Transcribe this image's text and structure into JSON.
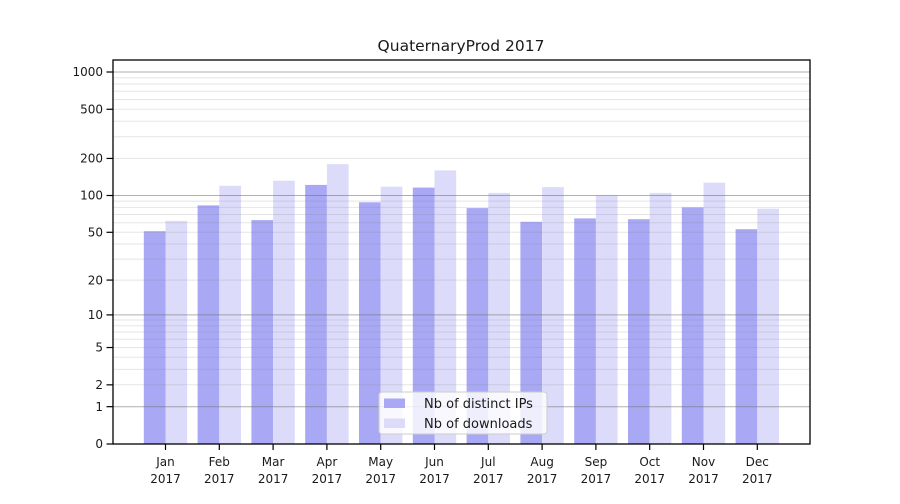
{
  "chart_data": {
    "type": "bar",
    "title": "QuaternaryProd 2017",
    "categories": [
      "Jan 2017",
      "Feb 2017",
      "Mar 2017",
      "Apr 2017",
      "May 2017",
      "Jun 2017",
      "Jul 2017",
      "Aug 2017",
      "Sep 2017",
      "Oct 2017",
      "Nov 2017",
      "Dec 2017"
    ],
    "series": [
      {
        "name": "Nb of distinct IPs",
        "color": "#a8a8f4",
        "values": [
          51,
          83,
          63,
          122,
          88,
          116,
          79,
          61,
          65,
          64,
          80,
          53
        ]
      },
      {
        "name": "Nb of downloads",
        "color": "#dcdcfa",
        "values": [
          62,
          120,
          132,
          180,
          118,
          160,
          105,
          117,
          100,
          105,
          127,
          78
        ]
      }
    ],
    "xlabel": "",
    "ylabel": "",
    "yscale": "log1p",
    "ylim": [
      0,
      1250
    ],
    "yticks": [
      0,
      1,
      2,
      5,
      10,
      20,
      50,
      100,
      200,
      500,
      1000
    ],
    "grid": true,
    "gridlines_over_bars": true,
    "legend_position": "lower center"
  },
  "colors": {
    "background": "#ffffff",
    "axis": "#000000",
    "tick_label": "#1a1a1a",
    "grid_major": "#6e6e6e",
    "grid_minor": "#878787",
    "legend_border": "#cccccc"
  }
}
